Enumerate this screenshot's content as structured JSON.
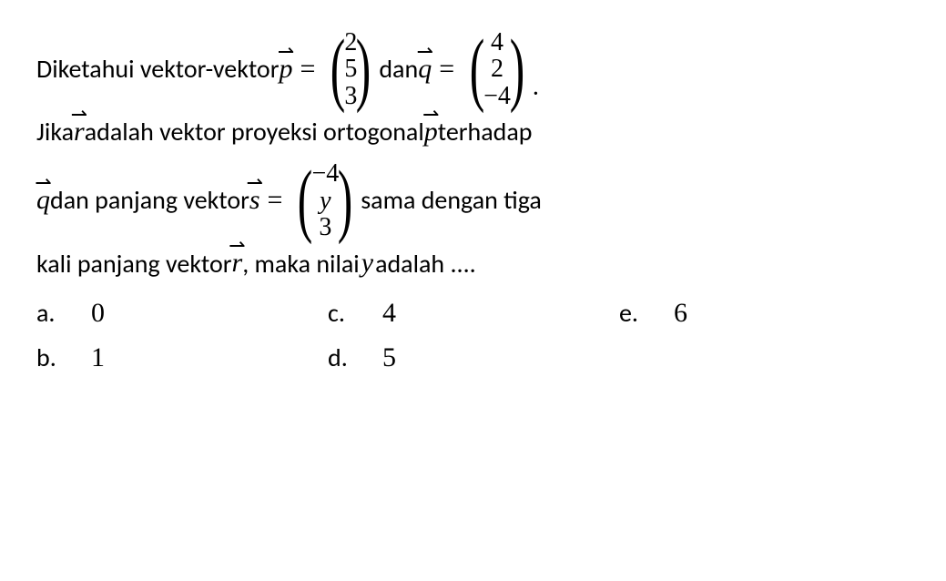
{
  "problem": {
    "line1_a": "Diketahui vektor-vektor ",
    "vec_p": "p",
    "eq": "=",
    "p_vals": [
      "2",
      "5",
      "3"
    ],
    "dan": " dan ",
    "vec_q": "q",
    "q_vals": [
      "4",
      "2",
      "−4"
    ],
    "period": ".",
    "line2_a": "Jika ",
    "vec_r": "r",
    "line2_b": " adalah vektor proyeksi ortogonal ",
    "line2_c": " terhadap",
    "line3_a": " dan panjang vektor ",
    "vec_s": "s",
    "s_vals": [
      "−4",
      "y",
      "3"
    ],
    "line3_b": " sama dengan tiga",
    "line4_a": "kali panjang vektor ",
    "line4_b": ", maka nilai ",
    "var_y": "y",
    "line4_c": " adalah ....",
    "options": {
      "a_label": "a.",
      "a_val": "0",
      "b_label": "b.",
      "b_val": "1",
      "c_label": "c.",
      "c_val": "4",
      "d_label": "d.",
      "d_val": "5",
      "e_label": "e.",
      "e_val": "6"
    }
  },
  "style": {
    "text_color": "#000000",
    "bg_color": "#ffffff",
    "body_fontsize": 28,
    "math_fontsize": 30,
    "matrix_cell_fontsize": 28,
    "paren_fontsize": 90,
    "font_family_text": "Calibri",
    "font_family_math": "Cambria Math"
  }
}
